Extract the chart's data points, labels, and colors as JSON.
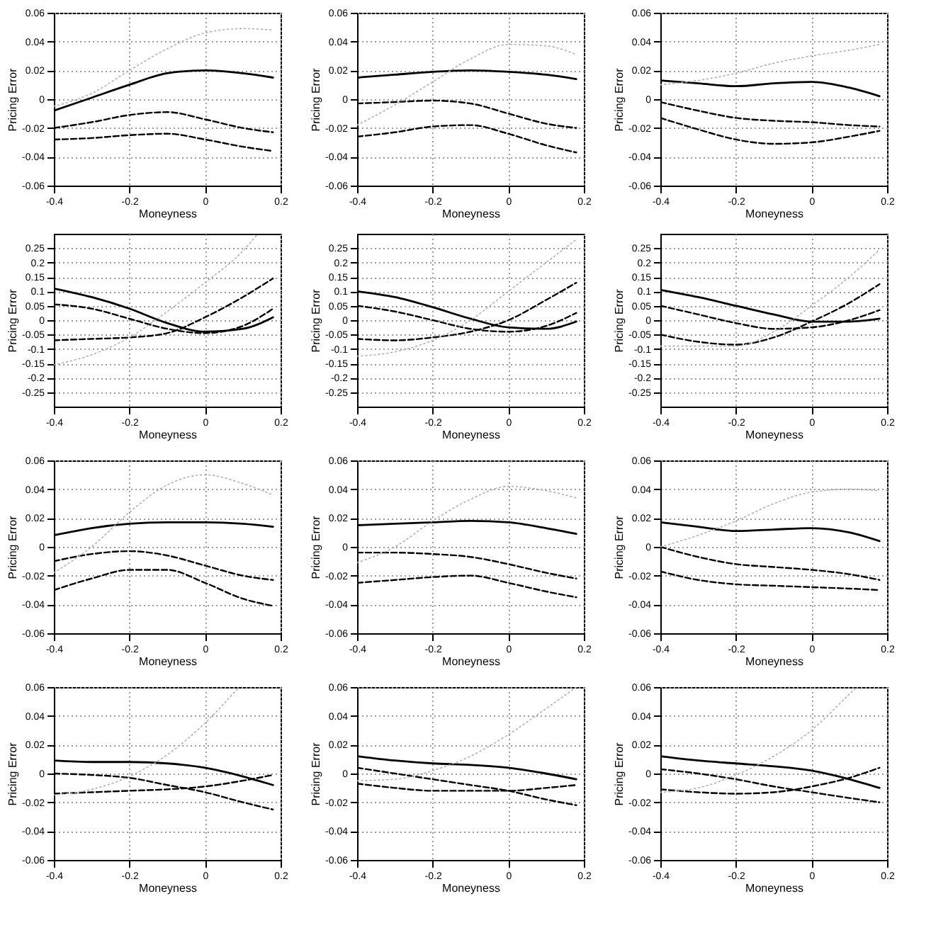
{
  "chart_data": [
    {
      "type": "line",
      "xlabel": "Moneyness",
      "ylabel": "Pricing Error",
      "x": [
        -0.4,
        -0.3,
        -0.2,
        -0.1,
        0,
        0.1,
        0.18
      ],
      "xlim": [
        -0.4,
        0.2
      ],
      "xticks": [
        -0.4,
        -0.2,
        0,
        0.2
      ],
      "ylim": [
        -0.06,
        0.06
      ],
      "yticks": [
        -0.06,
        -0.04,
        -0.02,
        0,
        0.02,
        0.04,
        0.06
      ],
      "grid": true,
      "series": [
        {
          "color": "#000000",
          "line_style": "solid",
          "values": [
            -0.008,
            0.001,
            0.01,
            0.018,
            0.02,
            0.018,
            0.015
          ]
        },
        {
          "color": "#000000",
          "line_style": "dashed",
          "values": [
            -0.02,
            -0.016,
            -0.011,
            -0.009,
            -0.014,
            -0.02,
            -0.023
          ]
        },
        {
          "color": "#000000",
          "line_style": "dashed",
          "values": [
            -0.028,
            -0.027,
            -0.025,
            -0.024,
            -0.028,
            -0.033,
            -0.036
          ]
        },
        {
          "color": "#b0b0b0",
          "line_style": "dotted",
          "values": [
            -0.005,
            0.004,
            0.02,
            0.035,
            0.046,
            0.049,
            0.048
          ]
        }
      ]
    },
    {
      "type": "line",
      "xlabel": "Moneyness",
      "ylabel": "Pricing Error",
      "x": [
        -0.4,
        -0.3,
        -0.2,
        -0.1,
        0,
        0.1,
        0.18
      ],
      "xlim": [
        -0.4,
        0.2
      ],
      "xticks": [
        -0.4,
        -0.2,
        0,
        0.2
      ],
      "ylim": [
        -0.06,
        0.06
      ],
      "yticks": [
        -0.06,
        -0.04,
        -0.02,
        0,
        0.02,
        0.04,
        0.06
      ],
      "grid": true,
      "series": [
        {
          "color": "#000000",
          "line_style": "solid",
          "values": [
            0.015,
            0.017,
            0.019,
            0.02,
            0.019,
            0.017,
            0.014
          ]
        },
        {
          "color": "#000000",
          "line_style": "dashed",
          "values": [
            -0.003,
            -0.002,
            -0.001,
            -0.003,
            -0.01,
            -0.017,
            -0.02
          ]
        },
        {
          "color": "#000000",
          "line_style": "dashed",
          "values": [
            -0.026,
            -0.023,
            -0.019,
            -0.018,
            -0.024,
            -0.032,
            -0.037
          ]
        },
        {
          "color": "#b0b0b0",
          "line_style": "dotted",
          "values": [
            -0.018,
            -0.004,
            0.012,
            0.028,
            0.038,
            0.037,
            0.031
          ]
        }
      ]
    },
    {
      "type": "line",
      "xlabel": "Moneyness",
      "ylabel": "Pricing Error",
      "x": [
        -0.4,
        -0.3,
        -0.2,
        -0.1,
        0,
        0.1,
        0.18
      ],
      "xlim": [
        -0.4,
        0.2
      ],
      "xticks": [
        -0.4,
        -0.2,
        0,
        0.2
      ],
      "ylim": [
        -0.06,
        0.06
      ],
      "yticks": [
        -0.06,
        -0.04,
        -0.02,
        0,
        0.02,
        0.04,
        0.06
      ],
      "grid": true,
      "series": [
        {
          "color": "#000000",
          "line_style": "solid",
          "values": [
            0.013,
            0.011,
            0.009,
            0.011,
            0.012,
            0.008,
            0.002
          ]
        },
        {
          "color": "#000000",
          "line_style": "dashed",
          "values": [
            -0.002,
            -0.008,
            -0.013,
            -0.015,
            -0.016,
            -0.018,
            -0.019
          ]
        },
        {
          "color": "#000000",
          "line_style": "dashed",
          "values": [
            -0.013,
            -0.021,
            -0.028,
            -0.031,
            -0.03,
            -0.026,
            -0.022
          ]
        },
        {
          "color": "#b0b0b0",
          "line_style": "dotted",
          "values": [
            0.01,
            0.013,
            0.018,
            0.025,
            0.03,
            0.034,
            0.038
          ]
        }
      ]
    },
    {
      "type": "line",
      "xlabel": "Moneyness",
      "ylabel": "Pricing Error",
      "x": [
        -0.4,
        -0.3,
        -0.2,
        -0.1,
        0,
        0.1,
        0.18
      ],
      "xlim": [
        -0.4,
        0.2
      ],
      "xticks": [
        -0.4,
        -0.2,
        0,
        0.2
      ],
      "ylim": [
        -0.3,
        0.3
      ],
      "yticks": [
        -0.25,
        -0.2,
        -0.15,
        -0.1,
        -0.05,
        0,
        0.05,
        0.1,
        0.15,
        0.2,
        0.25
      ],
      "grid": true,
      "series": [
        {
          "color": "#000000",
          "line_style": "solid",
          "values": [
            0.11,
            0.08,
            0.04,
            -0.01,
            -0.04,
            -0.03,
            0.01
          ]
        },
        {
          "color": "#000000",
          "line_style": "dashed",
          "values": [
            0.055,
            0.04,
            0.005,
            -0.03,
            -0.045,
            -0.02,
            0.04
          ]
        },
        {
          "color": "#000000",
          "line_style": "dashed",
          "values": [
            -0.07,
            -0.065,
            -0.06,
            -0.045,
            0.01,
            0.08,
            0.145
          ]
        },
        {
          "color": "#b0b0b0",
          "line_style": "dotted",
          "x": [
            -0.4,
            -0.3,
            -0.2,
            -0.1,
            0,
            0.1,
            0.14
          ],
          "values": [
            -0.155,
            -0.12,
            -0.06,
            0.03,
            0.13,
            0.24,
            0.3
          ]
        }
      ]
    },
    {
      "type": "line",
      "xlabel": "Moneyness",
      "ylabel": "Pricing Error",
      "x": [
        -0.4,
        -0.3,
        -0.2,
        -0.1,
        0,
        0.1,
        0.18
      ],
      "xlim": [
        -0.4,
        0.2
      ],
      "xticks": [
        -0.4,
        -0.2,
        0,
        0.2
      ],
      "ylim": [
        -0.3,
        0.3
      ],
      "yticks": [
        -0.25,
        -0.2,
        -0.15,
        -0.1,
        -0.05,
        0,
        0.05,
        0.1,
        0.15,
        0.2,
        0.25
      ],
      "grid": true,
      "series": [
        {
          "color": "#000000",
          "line_style": "solid",
          "values": [
            0.1,
            0.08,
            0.045,
            0.005,
            -0.025,
            -0.03,
            -0.005
          ]
        },
        {
          "color": "#000000",
          "line_style": "dashed",
          "values": [
            0.05,
            0.03,
            0.0,
            -0.03,
            -0.04,
            -0.02,
            0.025
          ]
        },
        {
          "color": "#000000",
          "line_style": "dashed",
          "values": [
            -0.065,
            -0.07,
            -0.06,
            -0.04,
            0.0,
            0.07,
            0.13
          ]
        },
        {
          "color": "#b0b0b0",
          "line_style": "dotted",
          "values": [
            -0.125,
            -0.11,
            -0.07,
            0.0,
            0.1,
            0.2,
            0.28
          ]
        }
      ]
    },
    {
      "type": "line",
      "xlabel": "Moneyness",
      "ylabel": "Pricing Error",
      "x": [
        -0.4,
        -0.3,
        -0.2,
        -0.1,
        0,
        0.1,
        0.18
      ],
      "xlim": [
        -0.4,
        0.2
      ],
      "xticks": [
        -0.4,
        -0.2,
        0,
        0.2
      ],
      "ylim": [
        -0.3,
        0.3
      ],
      "yticks": [
        -0.25,
        -0.2,
        -0.15,
        -0.1,
        -0.05,
        0,
        0.05,
        0.1,
        0.15,
        0.2,
        0.25
      ],
      "grid": true,
      "series": [
        {
          "color": "#000000",
          "line_style": "solid",
          "values": [
            0.105,
            0.08,
            0.05,
            0.02,
            -0.005,
            -0.005,
            0.005
          ]
        },
        {
          "color": "#000000",
          "line_style": "dashed",
          "values": [
            0.05,
            0.02,
            -0.01,
            -0.03,
            -0.025,
            0.0,
            0.035
          ]
        },
        {
          "color": "#000000",
          "line_style": "dashed",
          "values": [
            -0.05,
            -0.075,
            -0.085,
            -0.06,
            -0.005,
            0.06,
            0.125
          ]
        },
        {
          "color": "#b0b0b0",
          "line_style": "dotted",
          "values": [
            -0.09,
            -0.09,
            -0.09,
            -0.04,
            0.05,
            0.15,
            0.245
          ]
        }
      ]
    },
    {
      "type": "line",
      "xlabel": "Moneyness",
      "ylabel": "Pricing Error",
      "x": [
        -0.4,
        -0.3,
        -0.2,
        -0.1,
        0,
        0.1,
        0.18
      ],
      "xlim": [
        -0.4,
        0.2
      ],
      "xticks": [
        -0.4,
        -0.2,
        0,
        0.2
      ],
      "ylim": [
        -0.06,
        0.06
      ],
      "yticks": [
        -0.06,
        -0.04,
        -0.02,
        0,
        0.02,
        0.04,
        0.06
      ],
      "grid": true,
      "series": [
        {
          "color": "#000000",
          "line_style": "solid",
          "values": [
            0.008,
            0.013,
            0.016,
            0.017,
            0.017,
            0.016,
            0.014
          ]
        },
        {
          "color": "#000000",
          "line_style": "dashed",
          "values": [
            -0.01,
            -0.005,
            -0.003,
            -0.006,
            -0.013,
            -0.02,
            -0.023
          ]
        },
        {
          "color": "#000000",
          "line_style": "dashed",
          "values": [
            -0.03,
            -0.022,
            -0.016,
            -0.016,
            -0.025,
            -0.036,
            -0.041
          ]
        },
        {
          "color": "#b0b0b0",
          "line_style": "dotted",
          "values": [
            -0.018,
            0.0,
            0.024,
            0.043,
            0.05,
            0.044,
            0.036
          ]
        }
      ]
    },
    {
      "type": "line",
      "xlabel": "Moneyness",
      "ylabel": "Pricing Error",
      "x": [
        -0.4,
        -0.3,
        -0.2,
        -0.1,
        0,
        0.1,
        0.18
      ],
      "xlim": [
        -0.4,
        0.2
      ],
      "xticks": [
        -0.4,
        -0.2,
        0,
        0.2
      ],
      "ylim": [
        -0.06,
        0.06
      ],
      "yticks": [
        -0.06,
        -0.04,
        -0.02,
        0,
        0.02,
        0.04,
        0.06
      ],
      "grid": true,
      "series": [
        {
          "color": "#000000",
          "line_style": "solid",
          "values": [
            0.015,
            0.016,
            0.017,
            0.018,
            0.017,
            0.013,
            0.009
          ]
        },
        {
          "color": "#000000",
          "line_style": "dashed",
          "values": [
            -0.004,
            -0.004,
            -0.005,
            -0.007,
            -0.012,
            -0.018,
            -0.022
          ]
        },
        {
          "color": "#000000",
          "line_style": "dashed",
          "values": [
            -0.025,
            -0.023,
            -0.021,
            -0.02,
            -0.025,
            -0.031,
            -0.035
          ]
        },
        {
          "color": "#b0b0b0",
          "line_style": "dotted",
          "values": [
            -0.011,
            0.0,
            0.018,
            0.033,
            0.042,
            0.039,
            0.034
          ]
        }
      ]
    },
    {
      "type": "line",
      "xlabel": "Moneyness",
      "ylabel": "Pricing Error",
      "x": [
        -0.4,
        -0.3,
        -0.2,
        -0.1,
        0,
        0.1,
        0.18
      ],
      "xlim": [
        -0.4,
        0.2
      ],
      "xticks": [
        -0.4,
        -0.2,
        0,
        0.2
      ],
      "ylim": [
        -0.06,
        0.06
      ],
      "yticks": [
        -0.06,
        -0.04,
        -0.02,
        0,
        0.02,
        0.04,
        0.06
      ],
      "grid": true,
      "series": [
        {
          "color": "#000000",
          "line_style": "solid",
          "values": [
            0.017,
            0.014,
            0.011,
            0.012,
            0.013,
            0.01,
            0.004
          ]
        },
        {
          "color": "#000000",
          "line_style": "dashed",
          "values": [
            0.0,
            -0.007,
            -0.012,
            -0.014,
            -0.016,
            -0.019,
            -0.023
          ]
        },
        {
          "color": "#000000",
          "line_style": "dashed",
          "values": [
            -0.017,
            -0.023,
            -0.026,
            -0.027,
            -0.028,
            -0.029,
            -0.03
          ]
        },
        {
          "color": "#b0b0b0",
          "line_style": "dotted",
          "values": [
            0.0,
            0.008,
            0.018,
            0.03,
            0.038,
            0.04,
            0.039
          ]
        }
      ]
    },
    {
      "type": "line",
      "xlabel": "Moneyness",
      "ylabel": "Pricing Error",
      "x": [
        -0.4,
        -0.3,
        -0.2,
        -0.1,
        0,
        0.1,
        0.18
      ],
      "xlim": [
        -0.4,
        0.2
      ],
      "xticks": [
        -0.4,
        -0.2,
        0,
        0.2
      ],
      "ylim": [
        -0.06,
        0.06
      ],
      "yticks": [
        -0.06,
        -0.04,
        -0.02,
        0,
        0.02,
        0.04,
        0.06
      ],
      "grid": true,
      "series": [
        {
          "color": "#000000",
          "line_style": "solid",
          "values": [
            0.009,
            0.008,
            0.008,
            0.007,
            0.004,
            -0.002,
            -0.008
          ]
        },
        {
          "color": "#000000",
          "line_style": "dashed",
          "values": [
            0.0,
            -0.001,
            -0.003,
            -0.008,
            -0.013,
            -0.02,
            -0.025
          ]
        },
        {
          "color": "#000000",
          "line_style": "dashed",
          "values": [
            -0.014,
            -0.013,
            -0.012,
            -0.011,
            -0.009,
            -0.005,
            -0.001
          ]
        },
        {
          "color": "#b0b0b0",
          "line_style": "dotted",
          "x": [
            -0.4,
            -0.3,
            -0.2,
            -0.1,
            0,
            0.09
          ],
          "values": [
            -0.015,
            -0.011,
            -0.002,
            0.013,
            0.035,
            0.06
          ]
        }
      ]
    },
    {
      "type": "line",
      "xlabel": "Moneyness",
      "ylabel": "Pricing Error",
      "x": [
        -0.4,
        -0.3,
        -0.2,
        -0.1,
        0,
        0.1,
        0.18
      ],
      "xlim": [
        -0.4,
        0.2
      ],
      "xticks": [
        -0.4,
        -0.2,
        0,
        0.2
      ],
      "ylim": [
        -0.06,
        0.06
      ],
      "yticks": [
        -0.06,
        -0.04,
        -0.02,
        0,
        0.02,
        0.04,
        0.06
      ],
      "grid": true,
      "series": [
        {
          "color": "#000000",
          "line_style": "solid",
          "values": [
            0.012,
            0.009,
            0.007,
            0.006,
            0.004,
            0.0,
            -0.004
          ]
        },
        {
          "color": "#000000",
          "line_style": "dashed",
          "values": [
            0.004,
            0.0,
            -0.004,
            -0.008,
            -0.012,
            -0.018,
            -0.022
          ]
        },
        {
          "color": "#000000",
          "line_style": "dashed",
          "values": [
            -0.007,
            -0.01,
            -0.012,
            -0.012,
            -0.012,
            -0.01,
            -0.008
          ]
        },
        {
          "color": "#b0b0b0",
          "line_style": "dotted",
          "values": [
            -0.005,
            -0.004,
            0.002,
            0.012,
            0.027,
            0.045,
            0.06
          ]
        }
      ]
    },
    {
      "type": "line",
      "xlabel": "Moneyness",
      "ylabel": "Pricing Error",
      "x": [
        -0.4,
        -0.3,
        -0.2,
        -0.1,
        0,
        0.1,
        0.18
      ],
      "xlim": [
        -0.4,
        0.2
      ],
      "xticks": [
        -0.4,
        -0.2,
        0,
        0.2
      ],
      "ylim": [
        -0.06,
        0.06
      ],
      "yticks": [
        -0.06,
        -0.04,
        -0.02,
        0,
        0.02,
        0.04,
        0.06
      ],
      "grid": true,
      "series": [
        {
          "color": "#000000",
          "line_style": "solid",
          "values": [
            0.012,
            0.009,
            0.007,
            0.005,
            0.002,
            -0.004,
            -0.01
          ]
        },
        {
          "color": "#000000",
          "line_style": "dashed",
          "values": [
            0.003,
            0.0,
            -0.004,
            -0.009,
            -0.013,
            -0.017,
            -0.02
          ]
        },
        {
          "color": "#000000",
          "line_style": "dashed",
          "values": [
            -0.011,
            -0.013,
            -0.014,
            -0.013,
            -0.009,
            -0.003,
            0.004
          ]
        },
        {
          "color": "#b0b0b0",
          "line_style": "dotted",
          "x": [
            -0.4,
            -0.3,
            -0.2,
            -0.1,
            0,
            0.1,
            0.12
          ],
          "values": [
            -0.013,
            -0.01,
            -0.001,
            0.012,
            0.03,
            0.055,
            0.06
          ]
        }
      ]
    }
  ]
}
